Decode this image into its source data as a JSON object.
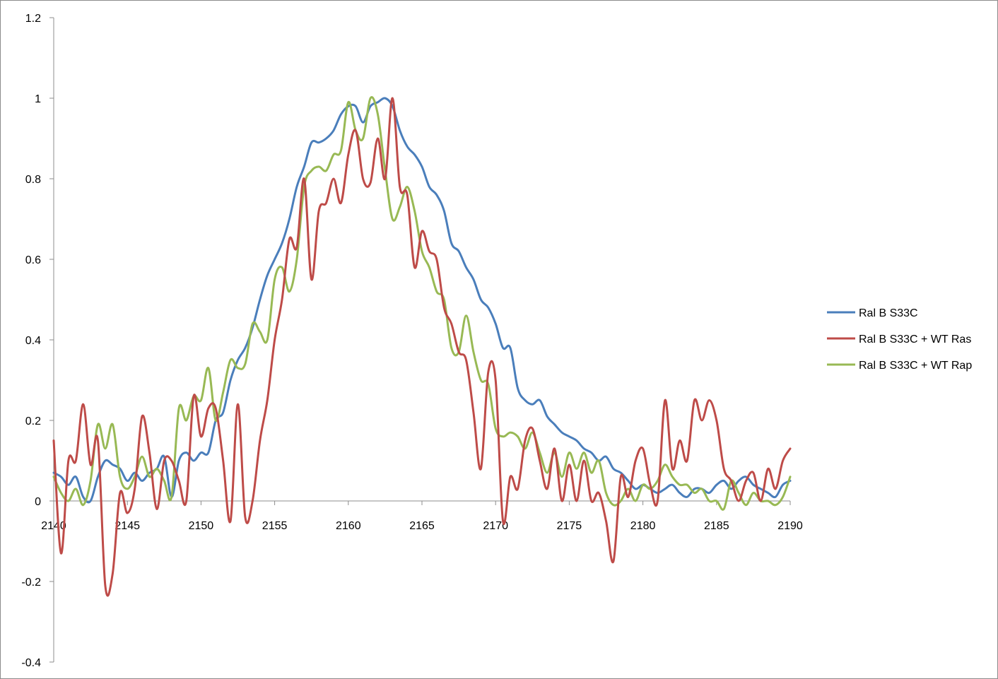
{
  "chart_data": {
    "type": "line",
    "title": "",
    "xlabel": "",
    "ylabel": "",
    "xlim": [
      2140,
      2190
    ],
    "ylim": [
      -0.4,
      1.2
    ],
    "x_ticks": [
      2140,
      2145,
      2150,
      2155,
      2160,
      2165,
      2170,
      2175,
      2180,
      2185,
      2190
    ],
    "y_ticks": [
      -0.4,
      -0.2,
      0,
      0.2,
      0.4,
      0.6,
      0.8,
      1,
      1.2
    ],
    "x_tick_labels": [
      "2140",
      "2145",
      "2150",
      "2155",
      "2160",
      "2165",
      "2170",
      "2175",
      "2180",
      "2185",
      "2190"
    ],
    "y_tick_labels": [
      "-0.4",
      "-0.2",
      "0",
      "0.2",
      "0.4",
      "0.6",
      "0.8",
      "1",
      "1.2"
    ],
    "grid": false,
    "legend_position": "right",
    "series": [
      {
        "name": "Ral B S33C",
        "color": "#4a7ebb",
        "x": [
          2140,
          2140.5,
          2141,
          2141.5,
          2142,
          2142.5,
          2143,
          2143.5,
          2144,
          2144.5,
          2145,
          2145.5,
          2146,
          2146.5,
          2147,
          2147.5,
          2148,
          2148.5,
          2149,
          2149.5,
          2150,
          2150.5,
          2151,
          2151.5,
          2152,
          2152.5,
          2153,
          2153.5,
          2154,
          2154.5,
          2155,
          2155.5,
          2156,
          2156.5,
          2157,
          2157.5,
          2158,
          2158.5,
          2159,
          2159.5,
          2160,
          2160.5,
          2161,
          2161.5,
          2162,
          2162.5,
          2163,
          2163.5,
          2164,
          2164.5,
          2165,
          2165.5,
          2166,
          2166.5,
          2167,
          2167.5,
          2168,
          2168.5,
          2169,
          2169.5,
          2170,
          2170.5,
          2171,
          2171.5,
          2172,
          2172.5,
          2173,
          2173.5,
          2174,
          2174.5,
          2175,
          2175.5,
          2176,
          2176.5,
          2177,
          2177.5,
          2178,
          2178.5,
          2179,
          2179.5,
          2180,
          2180.5,
          2181,
          2181.5,
          2182,
          2182.5,
          2183,
          2183.5,
          2184,
          2184.5,
          2185,
          2185.5,
          2186,
          2186.5,
          2187,
          2187.5,
          2188,
          2188.5,
          2189,
          2189.5,
          2190
        ],
        "y": [
          0.07,
          0.06,
          0.04,
          0.06,
          0.01,
          0.0,
          0.06,
          0.1,
          0.09,
          0.08,
          0.05,
          0.07,
          0.05,
          0.07,
          0.08,
          0.11,
          0.01,
          0.1,
          0.12,
          0.1,
          0.12,
          0.12,
          0.2,
          0.22,
          0.3,
          0.35,
          0.38,
          0.43,
          0.5,
          0.56,
          0.6,
          0.64,
          0.7,
          0.78,
          0.83,
          0.89,
          0.89,
          0.9,
          0.92,
          0.96,
          0.98,
          0.98,
          0.94,
          0.98,
          0.99,
          1.0,
          0.98,
          0.92,
          0.88,
          0.86,
          0.83,
          0.78,
          0.76,
          0.72,
          0.64,
          0.62,
          0.58,
          0.55,
          0.5,
          0.48,
          0.44,
          0.38,
          0.38,
          0.28,
          0.25,
          0.24,
          0.25,
          0.21,
          0.19,
          0.17,
          0.16,
          0.15,
          0.13,
          0.12,
          0.1,
          0.11,
          0.08,
          0.07,
          0.05,
          0.03,
          0.04,
          0.03,
          0.02,
          0.03,
          0.04,
          0.02,
          0.01,
          0.03,
          0.03,
          0.02,
          0.04,
          0.05,
          0.03,
          0.05,
          0.06,
          0.04,
          0.03,
          0.02,
          0.01,
          0.04,
          0.05
        ]
      },
      {
        "name": "Ral B S33C + WT Ras",
        "color": "#be4b48",
        "x": [
          2140,
          2140.5,
          2141,
          2141.5,
          2142,
          2142.5,
          2143,
          2143.5,
          2144,
          2144.5,
          2145,
          2145.5,
          2146,
          2146.5,
          2147,
          2147.5,
          2148,
          2148.5,
          2149,
          2149.5,
          2150,
          2150.5,
          2151,
          2151.5,
          2152,
          2152.5,
          2153,
          2153.5,
          2154,
          2154.5,
          2155,
          2155.5,
          2156,
          2156.5,
          2157,
          2157.5,
          2158,
          2158.5,
          2159,
          2159.5,
          2160,
          2160.5,
          2161,
          2161.5,
          2162,
          2162.5,
          2163,
          2163.5,
          2164,
          2164.5,
          2165,
          2165.5,
          2166,
          2166.5,
          2167,
          2167.5,
          2168,
          2168.5,
          2169,
          2169.5,
          2170,
          2170.5,
          2171,
          2171.5,
          2172,
          2172.5,
          2173,
          2173.5,
          2174,
          2174.5,
          2175,
          2175.5,
          2176,
          2176.5,
          2177,
          2177.5,
          2178,
          2178.5,
          2179,
          2179.5,
          2180,
          2180.5,
          2181,
          2181.5,
          2182,
          2182.5,
          2183,
          2183.5,
          2184,
          2184.5,
          2185,
          2185.5,
          2186,
          2186.5,
          2187,
          2187.5,
          2188,
          2188.5,
          2189,
          2189.5,
          2190
        ],
        "y": [
          0.15,
          -0.13,
          0.1,
          0.1,
          0.24,
          0.09,
          0.15,
          -0.21,
          -0.18,
          0.02,
          -0.03,
          0.03,
          0.21,
          0.12,
          -0.02,
          0.1,
          0.1,
          0.05,
          0.0,
          0.26,
          0.16,
          0.23,
          0.23,
          0.1,
          -0.05,
          0.24,
          -0.04,
          0.0,
          0.15,
          0.25,
          0.4,
          0.5,
          0.65,
          0.63,
          0.8,
          0.55,
          0.72,
          0.74,
          0.8,
          0.74,
          0.86,
          0.92,
          0.8,
          0.79,
          0.9,
          0.8,
          1.0,
          0.78,
          0.76,
          0.58,
          0.67,
          0.62,
          0.6,
          0.48,
          0.44,
          0.37,
          0.35,
          0.22,
          0.08,
          0.32,
          0.3,
          -0.05,
          0.06,
          0.03,
          0.15,
          0.18,
          0.1,
          0.03,
          0.13,
          0.0,
          0.09,
          0.0,
          0.1,
          0.0,
          0.02,
          -0.05,
          -0.15,
          0.06,
          0.01,
          0.1,
          0.13,
          0.04,
          0.0,
          0.25,
          0.08,
          0.15,
          0.1,
          0.25,
          0.2,
          0.25,
          0.2,
          0.08,
          0.05,
          0.0,
          0.05,
          0.07,
          0.0,
          0.08,
          0.03,
          0.1,
          0.13
        ]
      },
      {
        "name": "Ral B S33C + WT Rap",
        "color": "#98b954",
        "x": [
          2140,
          2140.5,
          2141,
          2141.5,
          2142,
          2142.5,
          2143,
          2143.5,
          2144,
          2144.5,
          2145,
          2145.5,
          2146,
          2146.5,
          2147,
          2147.5,
          2148,
          2148.5,
          2149,
          2149.5,
          2150,
          2150.5,
          2151,
          2151.5,
          2152,
          2152.5,
          2153,
          2153.5,
          2154,
          2154.5,
          2155,
          2155.5,
          2156,
          2156.5,
          2157,
          2157.5,
          2158,
          2158.5,
          2159,
          2159.5,
          2160,
          2160.5,
          2161,
          2161.5,
          2162,
          2162.5,
          2163,
          2163.5,
          2164,
          2164.5,
          2165,
          2165.5,
          2166,
          2166.5,
          2167,
          2167.5,
          2168,
          2168.5,
          2169,
          2169.5,
          2170,
          2170.5,
          2171,
          2171.5,
          2172,
          2172.5,
          2173,
          2173.5,
          2174,
          2174.5,
          2175,
          2175.5,
          2176,
          2176.5,
          2177,
          2177.5,
          2178,
          2178.5,
          2179,
          2179.5,
          2180,
          2180.5,
          2181,
          2181.5,
          2182,
          2182.5,
          2183,
          2183.5,
          2184,
          2184.5,
          2185,
          2185.5,
          2186,
          2186.5,
          2187,
          2187.5,
          2188,
          2188.5,
          2189,
          2189.5,
          2190
        ],
        "y": [
          0.06,
          0.02,
          0.0,
          0.03,
          -0.01,
          0.05,
          0.19,
          0.13,
          0.19,
          0.06,
          0.03,
          0.06,
          0.11,
          0.06,
          0.08,
          0.05,
          0.01,
          0.23,
          0.2,
          0.26,
          0.25,
          0.33,
          0.2,
          0.27,
          0.35,
          0.33,
          0.34,
          0.44,
          0.42,
          0.4,
          0.55,
          0.58,
          0.52,
          0.6,
          0.78,
          0.82,
          0.83,
          0.82,
          0.86,
          0.87,
          0.99,
          0.92,
          0.9,
          1.0,
          0.96,
          0.82,
          0.7,
          0.73,
          0.78,
          0.72,
          0.62,
          0.58,
          0.52,
          0.5,
          0.38,
          0.37,
          0.46,
          0.37,
          0.3,
          0.29,
          0.18,
          0.16,
          0.17,
          0.16,
          0.13,
          0.17,
          0.12,
          0.07,
          0.12,
          0.06,
          0.12,
          0.08,
          0.12,
          0.07,
          0.1,
          0.02,
          -0.01,
          0.0,
          0.03,
          0.0,
          0.04,
          0.03,
          0.05,
          0.09,
          0.06,
          0.04,
          0.04,
          0.02,
          0.03,
          0.0,
          0.0,
          -0.02,
          0.05,
          0.02,
          -0.01,
          0.02,
          0.0,
          0.0,
          -0.01,
          0.01,
          0.06
        ]
      }
    ]
  }
}
